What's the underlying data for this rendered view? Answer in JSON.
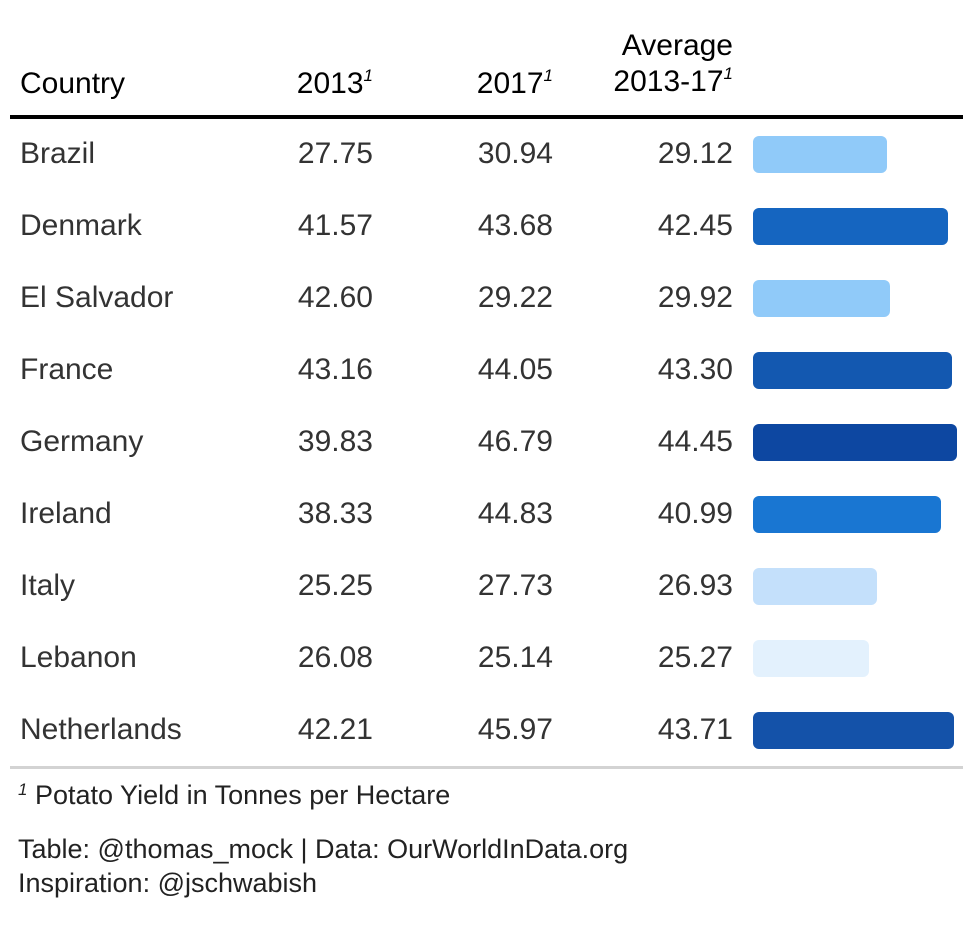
{
  "header": {
    "country": "Country",
    "y2013": "2013",
    "y2017": "2017",
    "avg_line1": "Average",
    "avg_line2": "2013-17",
    "footnote_mark": "1"
  },
  "footer": {
    "footnote_mark": "1",
    "footnote": "Potato Yield in Tonnes per Hectare",
    "source_line1": "Table: @thomas_mock | Data: OurWorldInData.org",
    "source_line2": "Inspiration: @jschwabish"
  },
  "chart_data": {
    "type": "table",
    "columns": [
      "Country",
      "2013",
      "2017",
      "Average 2013-17"
    ],
    "rows": [
      {
        "country": "Brazil",
        "y2013": "27.75",
        "y2017": "30.94",
        "avg": "29.12",
        "avg_value": 29.12,
        "bar_color": "#90caf9"
      },
      {
        "country": "Denmark",
        "y2013": "41.57",
        "y2017": "43.68",
        "avg": "42.45",
        "avg_value": 42.45,
        "bar_color": "#1565c0"
      },
      {
        "country": "El Salvador",
        "y2013": "42.60",
        "y2017": "29.22",
        "avg": "29.92",
        "avg_value": 29.92,
        "bar_color": "#90caf9"
      },
      {
        "country": "France",
        "y2013": "43.16",
        "y2017": "44.05",
        "avg": "43.30",
        "avg_value": 43.3,
        "bar_color": "#1358b0"
      },
      {
        "country": "Germany",
        "y2013": "39.83",
        "y2017": "46.79",
        "avg": "44.45",
        "avg_value": 44.45,
        "bar_color": "#0d47a1"
      },
      {
        "country": "Ireland",
        "y2013": "38.33",
        "y2017": "44.83",
        "avg": "40.99",
        "avg_value": 40.99,
        "bar_color": "#1976d2"
      },
      {
        "country": "Italy",
        "y2013": "25.25",
        "y2017": "27.73",
        "avg": "26.93",
        "avg_value": 26.93,
        "bar_color": "#c4e0fb"
      },
      {
        "country": "Lebanon",
        "y2013": "26.08",
        "y2017": "25.14",
        "avg": "25.27",
        "avg_value": 25.27,
        "bar_color": "#e3f1fd"
      },
      {
        "country": "Netherlands",
        "y2013": "42.21",
        "y2017": "45.97",
        "avg": "43.71",
        "avg_value": 43.71,
        "bar_color": "#1452a9"
      }
    ],
    "bar_range": [
      0,
      44.45
    ]
  }
}
